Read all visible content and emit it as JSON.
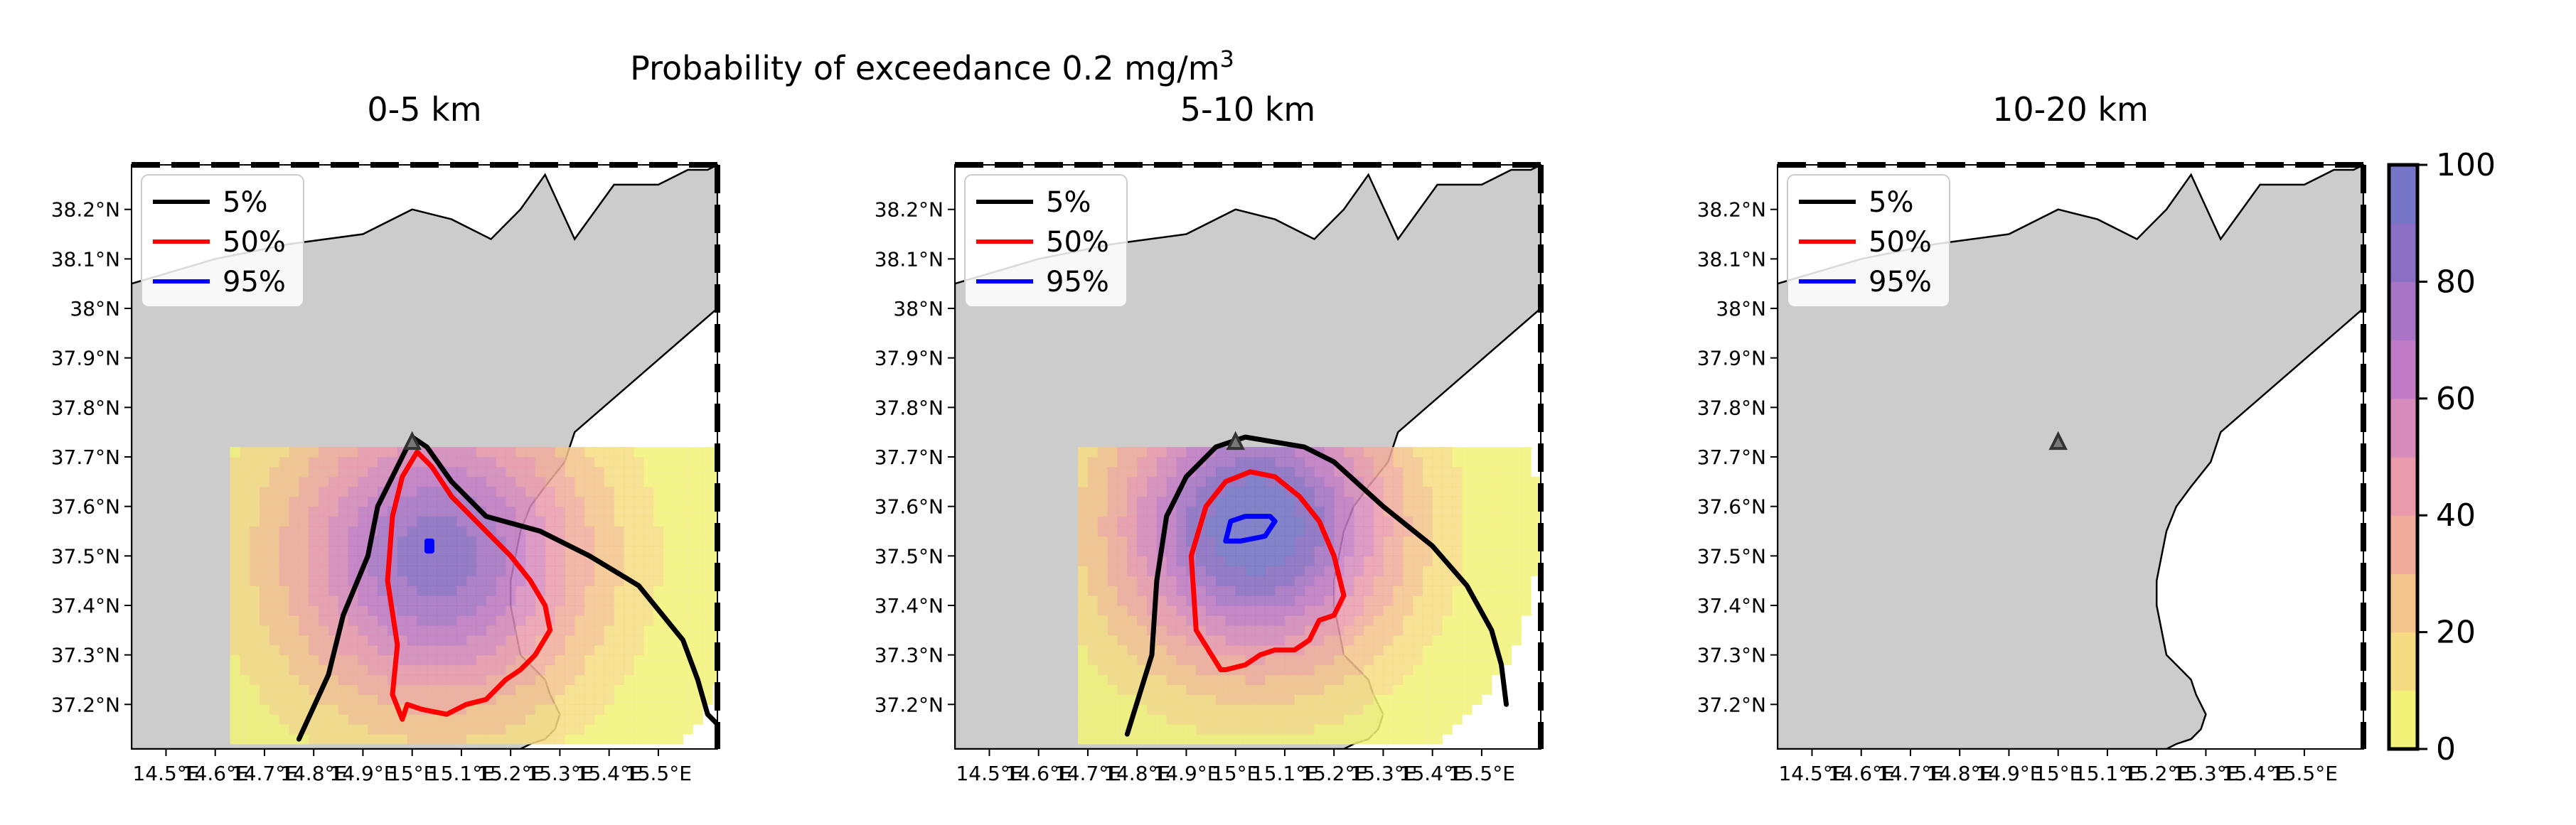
{
  "chart_data": {
    "type": "map",
    "suptitle": "Probability of exceedance 0.2 mg/m",
    "suptitle_superscript": "3",
    "panels": [
      {
        "title": "0-5 km",
        "legend": [
          {
            "label": "5%",
            "color": "#000000"
          },
          {
            "label": "50%",
            "color": "#ff0000"
          },
          {
            "label": "95%",
            "color": "#0000ff"
          }
        ],
        "vent": {
          "lon": 15.0,
          "lat": 37.73
        },
        "field": {
          "type": "gaussian_plume",
          "peak_prob": 85,
          "center": {
            "lon": 15.05,
            "lat": 37.5
          },
          "spread_lon": 0.22,
          "spread_lat": 0.22,
          "extent": {
            "lon": [
              14.63,
              15.65
            ],
            "lat": [
              37.12,
              37.72
            ]
          }
        },
        "contours": [
          {
            "level": "5%",
            "color": "#000000",
            "lon": [
              14.77,
              14.83,
              14.86,
              14.91,
              14.93,
              14.98,
              15.0,
              15.03,
              15.08,
              15.15,
              15.26,
              15.36,
              15.46,
              15.55,
              15.58,
              15.6,
              15.65
            ],
            "lat": [
              37.13,
              37.26,
              37.38,
              37.5,
              37.6,
              37.7,
              37.74,
              37.72,
              37.65,
              37.58,
              37.55,
              37.5,
              37.44,
              37.33,
              37.25,
              37.18,
              37.13
            ]
          },
          {
            "level": "50%",
            "color": "#ff0000",
            "lon": [
              14.98,
              14.96,
              14.97,
              14.95,
              14.96,
              14.98,
              15.01,
              15.04,
              15.08,
              15.12,
              15.16,
              15.2,
              15.24,
              15.27,
              15.28,
              15.25,
              15.22,
              15.19,
              15.15,
              15.11,
              15.07,
              15.02,
              14.99,
              14.98
            ],
            "lat": [
              37.17,
              37.22,
              37.32,
              37.45,
              37.58,
              37.66,
              37.71,
              37.68,
              37.62,
              37.58,
              37.54,
              37.5,
              37.45,
              37.4,
              37.35,
              37.3,
              37.27,
              37.25,
              37.21,
              37.2,
              37.18,
              37.19,
              37.2,
              37.17
            ]
          },
          {
            "level": "95%",
            "color": "#0000ff",
            "lon": [
              15.03,
              15.03,
              15.04,
              15.04,
              15.03
            ],
            "lat": [
              37.51,
              37.53,
              37.53,
              37.51,
              37.51
            ]
          }
        ]
      },
      {
        "title": "5-10 km",
        "legend": [
          {
            "label": "5%",
            "color": "#000000"
          },
          {
            "label": "50%",
            "color": "#ff0000"
          },
          {
            "label": "95%",
            "color": "#0000ff"
          }
        ],
        "vent": {
          "lon": 15.0,
          "lat": 37.73
        },
        "field": {
          "type": "gaussian_plume",
          "peak_prob": 100,
          "center": {
            "lon": 15.04,
            "lat": 37.56
          },
          "spread_lon": 0.2,
          "spread_lat": 0.2,
          "extent": {
            "lon": [
              14.68,
              15.62
            ],
            "lat": [
              37.12,
              37.72
            ]
          }
        },
        "contours": [
          {
            "level": "5%",
            "color": "#000000",
            "lon": [
              14.78,
              14.83,
              14.84,
              14.86,
              14.9,
              14.96,
              15.02,
              15.08,
              15.14,
              15.2,
              15.3,
              15.4,
              15.47,
              15.52,
              15.54,
              15.55
            ],
            "lat": [
              37.14,
              37.3,
              37.45,
              37.58,
              37.66,
              37.72,
              37.74,
              37.73,
              37.72,
              37.69,
              37.6,
              37.52,
              37.44,
              37.35,
              37.28,
              37.2
            ]
          },
          {
            "level": "50%",
            "color": "#ff0000",
            "lon": [
              14.97,
              14.92,
              14.91,
              14.94,
              14.98,
              15.03,
              15.08,
              15.13,
              15.17,
              15.2,
              15.22,
              15.2,
              15.17,
              15.15,
              15.12,
              15.08,
              15.05,
              15.02,
              14.98,
              14.97
            ],
            "lat": [
              37.27,
              37.35,
              37.5,
              37.6,
              37.65,
              37.67,
              37.66,
              37.62,
              37.57,
              37.5,
              37.42,
              37.38,
              37.37,
              37.33,
              37.31,
              37.31,
              37.3,
              37.28,
              37.27,
              37.27
            ]
          },
          {
            "level": "95%",
            "color": "#0000ff",
            "lon": [
              14.98,
              14.99,
              15.02,
              15.07,
              15.08,
              15.06,
              15.01,
              14.98
            ],
            "lat": [
              37.53,
              37.57,
              37.58,
              37.58,
              37.57,
              37.54,
              37.53,
              37.53
            ]
          }
        ]
      },
      {
        "title": "10-20 km",
        "legend": [
          {
            "label": "5%",
            "color": "#000000"
          },
          {
            "label": "50%",
            "color": "#ff0000"
          },
          {
            "label": "95%",
            "color": "#0000ff"
          }
        ],
        "vent": {
          "lon": 15.0,
          "lat": 37.73
        },
        "field": null,
        "contours": []
      }
    ],
    "map_extent": {
      "lon": [
        14.43,
        15.62
      ],
      "lat": [
        37.11,
        38.29
      ]
    },
    "xticks": [
      14.5,
      14.6,
      14.7,
      14.8,
      14.9,
      15.0,
      15.1,
      15.2,
      15.3,
      15.4,
      15.5
    ],
    "xtick_labels": [
      "14.5°E",
      "14.6°E",
      "14.7°E",
      "14.8°E",
      "14.9°E",
      "15°E",
      "15.1°E",
      "15.2°E",
      "15.3°E",
      "15.4°E",
      "15.5°E"
    ],
    "yticks": [
      37.2,
      37.3,
      37.4,
      37.5,
      37.6,
      37.7,
      37.8,
      37.9,
      38.0,
      38.1,
      38.2
    ],
    "ytick_labels": [
      "37.2°N",
      "37.3°N",
      "37.4°N",
      "37.5°N",
      "37.6°N",
      "37.7°N",
      "37.8°N",
      "37.9°N",
      "38°N",
      "38.1°N",
      "38.2°N"
    ],
    "land_outline": {
      "lon": [
        14.43,
        14.6,
        14.75,
        14.9,
        15.0,
        15.08,
        15.16,
        15.22,
        15.27,
        15.33,
        15.41,
        15.5,
        15.56,
        15.6,
        15.62,
        15.62,
        15.33,
        15.31,
        15.27,
        15.24,
        15.22,
        15.21,
        15.2,
        15.2,
        15.21,
        15.22,
        15.25,
        15.27,
        15.28,
        15.3,
        15.29,
        15.27,
        15.24,
        15.22,
        14.43
      ],
      "lat": [
        38.05,
        38.1,
        38.13,
        38.15,
        38.2,
        38.18,
        38.14,
        38.2,
        38.27,
        38.14,
        38.25,
        38.25,
        38.28,
        38.28,
        38.29,
        38.0,
        37.75,
        37.69,
        37.64,
        37.6,
        37.55,
        37.5,
        37.45,
        37.4,
        37.35,
        37.3,
        37.27,
        37.25,
        37.22,
        37.18,
        37.15,
        37.13,
        37.12,
        37.11,
        37.11
      ]
    },
    "colorbar": {
      "min": 0,
      "max": 100,
      "step": 10,
      "ticks": [
        0,
        20,
        40,
        60,
        80,
        100
      ],
      "tick_labels": [
        "0",
        "20",
        "40",
        "60",
        "80",
        "100"
      ],
      "colors": [
        "#f2f278",
        "#f5dc82",
        "#f3c48c",
        "#f0ab9b",
        "#e99aab",
        "#d68bbb",
        "#c27bc6",
        "#a774c6",
        "#8b6fc4",
        "#7676c8"
      ]
    }
  }
}
